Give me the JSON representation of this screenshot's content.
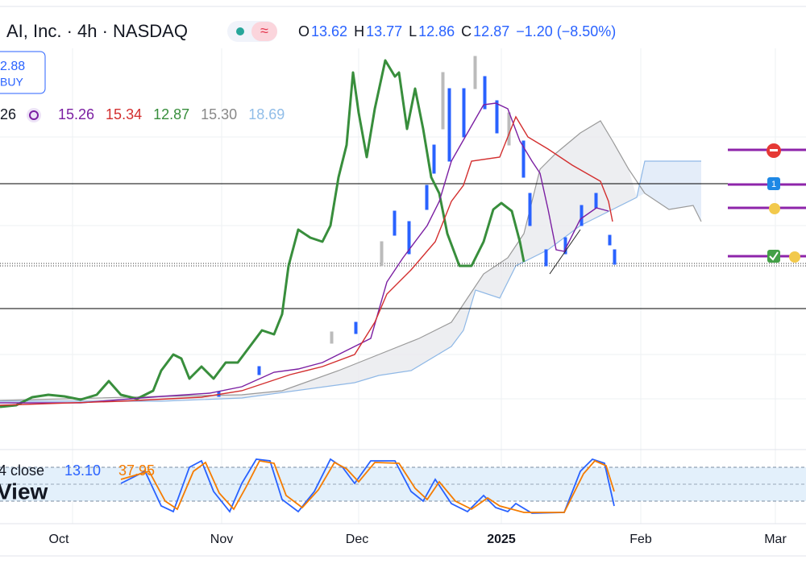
{
  "header": {
    "title": "AI, Inc. · 4h · NASDAQ",
    "wave_icon": "≈",
    "ohlc": [
      {
        "key": "O",
        "value": "13.62"
      },
      {
        "key": "H",
        "value": "13.77"
      },
      {
        "key": "L",
        "value": "12.86"
      },
      {
        "key": "C",
        "value": "12.87"
      }
    ],
    "change": "−1.20 (−8.50%)"
  },
  "buy_button": {
    "price": "2.88",
    "label": "BUY"
  },
  "indicator": {
    "period": "26",
    "values": [
      "15.26",
      "15.34",
      "12.87",
      "15.30",
      "18.69"
    ]
  },
  "alerts": {
    "badge": "1"
  },
  "oscillator": {
    "label": "4 close",
    "values": [
      "13.10",
      "37.95"
    ]
  },
  "watermark": "View",
  "time_axis": [
    "Oct",
    "Nov",
    "Dec",
    "2025",
    "Feb",
    "Mar"
  ]
}
